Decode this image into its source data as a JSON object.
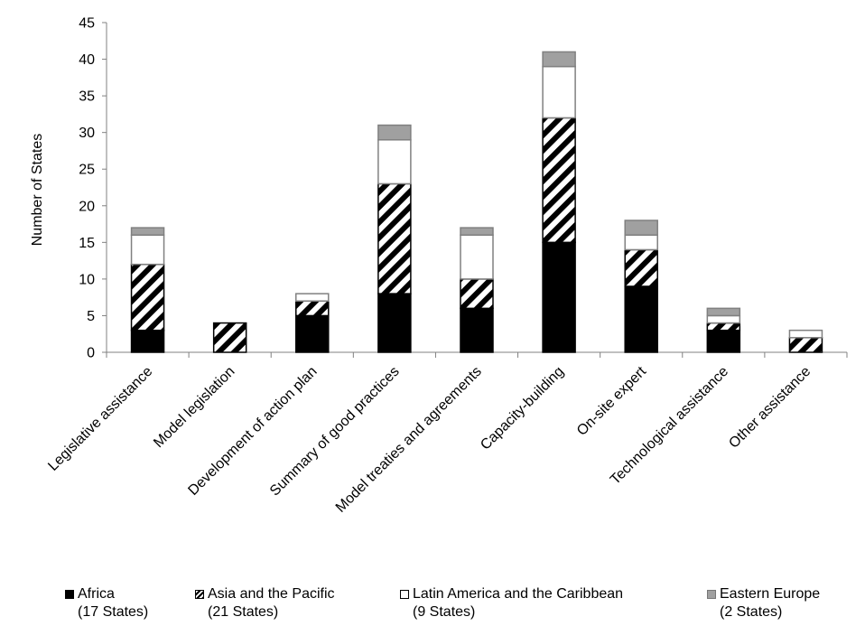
{
  "chart_data": {
    "type": "bar",
    "stacked": true,
    "ylabel": "Number of States",
    "ylim": [
      0,
      45
    ],
    "yticks": [
      0,
      5,
      10,
      15,
      20,
      25,
      30,
      35,
      40,
      45
    ],
    "categories": [
      "Legislative assistance",
      "Model legislation",
      "Development of action plan",
      "Summary of good practices",
      "Model treaties and agreements",
      "Capacity-building",
      "On-site expert",
      "Technological assistance",
      "Other assistance"
    ],
    "series": [
      {
        "name": "Africa",
        "subtitle": "(17 States)",
        "color": "#000000",
        "pattern": "solid",
        "values": [
          3,
          0,
          5,
          8,
          6,
          15,
          9,
          3,
          0
        ]
      },
      {
        "name": "Asia and the Pacific",
        "subtitle": "(21 States)",
        "color": "#000000",
        "pattern": "diagonal-stripes",
        "values": [
          9,
          4,
          2,
          15,
          4,
          17,
          5,
          1,
          2
        ]
      },
      {
        "name": "Latin America and the Caribbean",
        "subtitle": "(9 States)",
        "color": "#ffffff",
        "pattern": "solid",
        "values": [
          4,
          0,
          1,
          6,
          6,
          7,
          2,
          1,
          1
        ]
      },
      {
        "name": "Eastern Europe",
        "subtitle": "(2 States)",
        "color": "#a0a0a0",
        "pattern": "solid",
        "values": [
          1,
          0,
          0,
          2,
          1,
          2,
          2,
          1,
          0
        ]
      }
    ],
    "grid": false,
    "legend_position": "bottom"
  }
}
